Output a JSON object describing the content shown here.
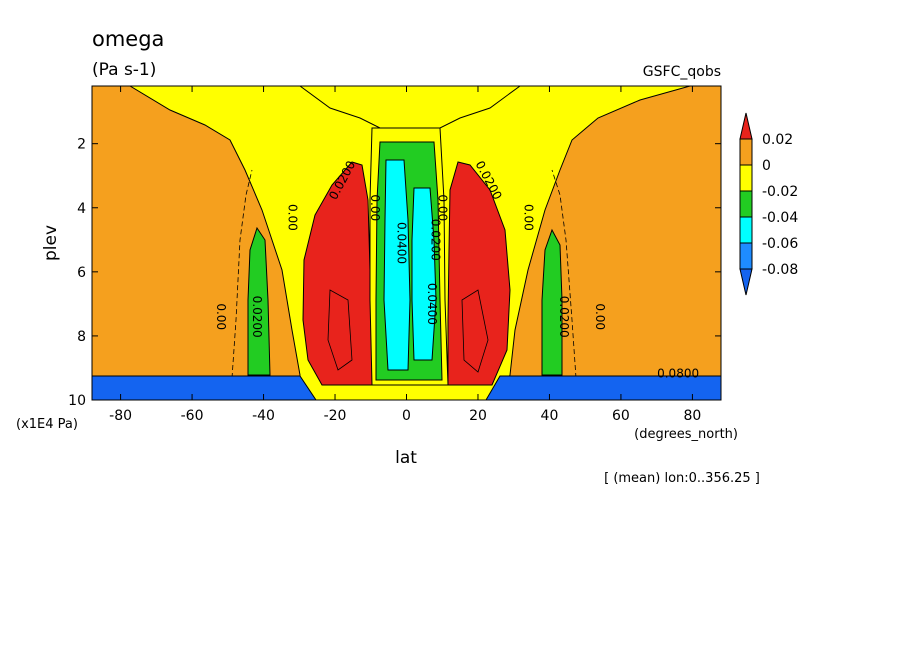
{
  "chart_data": {
    "type": "contour",
    "title": "omega",
    "units": "(Pa s-1)",
    "source": "GSFC_qobs",
    "xlabel": "lat",
    "xunits": "(degrees_north)",
    "ylabel": "plev",
    "yunits": "(x1E4 Pa)",
    "footnote": "[ (mean) lon:0..356.25 ]",
    "xlim": [
      -88,
      88
    ],
    "ylim": [
      10,
      0.2
    ],
    "xticks": [
      "-80",
      "-60",
      "-40",
      "-20",
      "0",
      "20",
      "40",
      "60",
      "80"
    ],
    "xtick_values": [
      -80,
      -60,
      -40,
      -20,
      0,
      20,
      40,
      60,
      80
    ],
    "yticks": [
      "2",
      "4",
      "6",
      "8",
      "10"
    ],
    "ytick_values": [
      2,
      4,
      6,
      8,
      10
    ],
    "colorbar": {
      "labels": [
        "0.02",
        "0",
        "-0.02",
        "-0.04",
        "-0.06",
        "-0.08"
      ],
      "colors": [
        "#e8231c",
        "#f5a01e",
        "#ffff00",
        "#22cc22",
        "#00ffff",
        "#1e8cff",
        "#1464f0"
      ]
    },
    "contour_labels": [
      {
        "text": "0.0200",
        "x": -17,
        "y": 3.2,
        "rot": -62
      },
      {
        "text": "0.00",
        "x": -10,
        "y": 4.0,
        "rot": 90
      },
      {
        "text": "0.00",
        "x": -33,
        "y": 4.3,
        "rot": 90
      },
      {
        "text": "0.00",
        "x": -53,
        "y": 7.4,
        "rot": 90
      },
      {
        "text": "0.0200",
        "x": -43,
        "y": 7.4,
        "rot": 90
      },
      {
        "text": "0.0400",
        "x": -2.5,
        "y": 5.1,
        "rot": 90
      },
      {
        "text": "0.0200",
        "x": 7,
        "y": 5.0,
        "rot": 90
      },
      {
        "text": "0.0400",
        "x": 6,
        "y": 7.0,
        "rot": 90
      },
      {
        "text": "0.00",
        "x": 9,
        "y": 4.0,
        "rot": 90
      },
      {
        "text": "0.0200",
        "x": 22,
        "y": 3.2,
        "rot": 62
      },
      {
        "text": "0.00",
        "x": 33,
        "y": 4.3,
        "rot": 90
      },
      {
        "text": "0.0200",
        "x": 43,
        "y": 7.4,
        "rot": 90
      },
      {
        "text": "0.00",
        "x": 53,
        "y": 7.4,
        "rot": 90
      },
      {
        "text": "0.0800",
        "x": 76,
        "y": 9.3,
        "rot": 0
      }
    ]
  }
}
